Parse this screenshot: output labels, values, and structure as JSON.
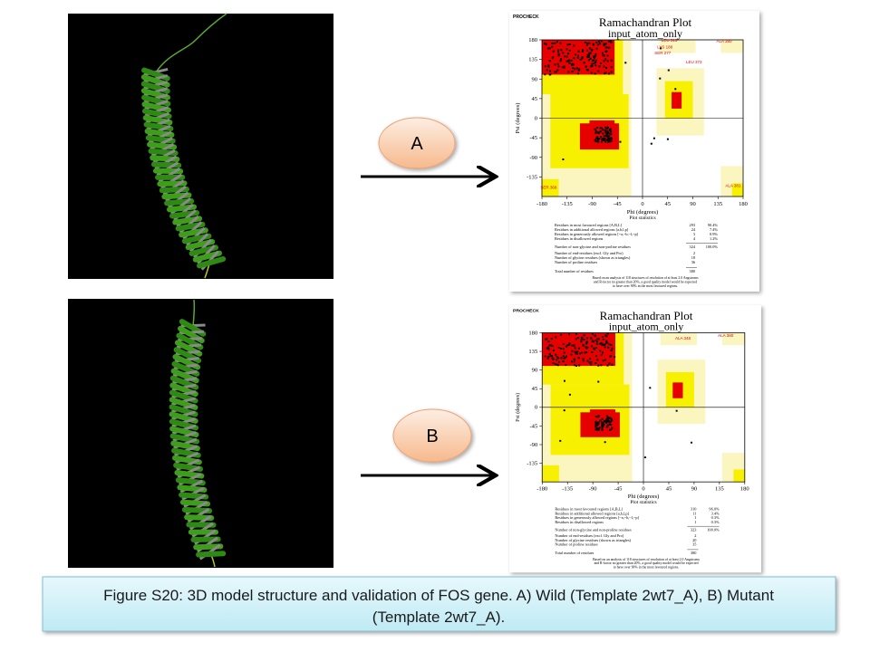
{
  "panels": [
    {
      "label": "A",
      "plot": {
        "header": "PROCHECK",
        "title": "Ramachandran Plot",
        "subtitle": "input_atom_only",
        "y_label": "Psi (degrees)",
        "x_label": "Phi (degrees)",
        "yticks": [
          180,
          135,
          90,
          45,
          0,
          -45,
          -90,
          -135
        ],
        "xticks": [
          -180,
          -135,
          -90,
          -45,
          0,
          45,
          90,
          135,
          180
        ],
        "residue_labels": [
          "LEU 313",
          "LYS 188",
          "SER 277",
          "LEU 373",
          "ALA 380",
          "SER 368",
          "ALA 381"
        ],
        "stats_title": "Plot statistics",
        "stats": [
          {
            "label": "Residues in most favoured regions [A,B,L]",
            "count": 293,
            "percent": "90.4%"
          },
          {
            "label": "Residues in additional allowed regions [a,b,l,p]",
            "count": 24,
            "percent": "7.4%"
          },
          {
            "label": "Residues in generously allowed regions [~a,~b,~l,~p]",
            "count": 3,
            "percent": "0.9%"
          },
          {
            "label": "Residues in disallowed regions",
            "count": 4,
            "percent": "1.2%"
          },
          {
            "label": "Number of non-glycine and non-proline residues",
            "count": 324,
            "percent": "100.0%"
          },
          {
            "label": "Number of end-residues (excl. Gly and Pro)",
            "count": 2
          },
          {
            "label": "Number of glycine residues (shown as triangles)",
            "count": 18
          },
          {
            "label": "Number of proline residues",
            "count": 36
          },
          {
            "label": "Total number of residues",
            "count": 380
          }
        ],
        "footnote": [
          "Based on an analysis of 118 structures of resolution of at least 2.0 Angstroms",
          "and R-factor no greater than 20%, a good quality model would be expected",
          "to have over 90% in the most favoured regions."
        ]
      }
    },
    {
      "label": "B",
      "plot": {
        "header": "PROCHECK",
        "title": "Ramachandran Plot",
        "subtitle": "input_atom_only",
        "y_label": "Psi (degrees)",
        "x_label": "Phi (degrees)",
        "yticks": [
          180,
          135,
          90,
          45,
          0,
          -45,
          -90,
          -135
        ],
        "xticks": [
          -180,
          -135,
          -90,
          -45,
          0,
          45,
          90,
          135,
          180
        ],
        "residue_labels": [
          "ALA 348",
          "ALA 380"
        ],
        "stats_title": "Plot statistics",
        "stats": [
          {
            "label": "Residues in most favoured regions [A,B,L]",
            "count": 310,
            "percent": "96.0%"
          },
          {
            "label": "Residues in additional allowed regions [a,b,l,p]",
            "count": 11,
            "percent": "3.4%"
          },
          {
            "label": "Residues in generously allowed regions [~a,~b,~l,~p]",
            "count": 1,
            "percent": "0.3%"
          },
          {
            "label": "Residues in disallowed regions",
            "count": 1,
            "percent": "0.3%"
          },
          {
            "label": "Number of non-glycine and non-proline residues",
            "count": 323,
            "percent": "100.0%"
          },
          {
            "label": "Number of end-residues (excl. Gly and Pro)",
            "count": 2
          },
          {
            "label": "Number of glycine residues (shown as triangles)",
            "count": 20
          },
          {
            "label": "Number of proline residues",
            "count": 35
          },
          {
            "label": "Total number of residues",
            "count": 380
          }
        ],
        "footnote": [
          "Based on an analysis of 118 structures of resolution of at least 2.0 Angstroms",
          "and R-factor no greater than 20%, a good quality model would be expected",
          "to have over 90% in the most favoured regions."
        ]
      }
    }
  ],
  "caption": {
    "lines": [
      "Figure S20: 3D model structure and validation of FOS gene. A) Wild (Template 2wt7_A), B) Mutant",
      "(Template 2wt7_A)."
    ]
  }
}
